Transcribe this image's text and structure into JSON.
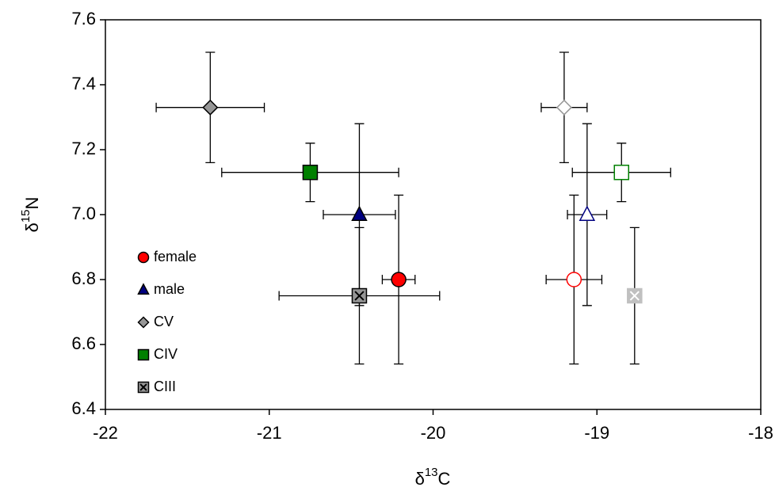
{
  "chart_data": {
    "type": "scatter",
    "xlabel": [
      "δ",
      "13",
      "C"
    ],
    "ylabel": [
      "δ",
      "15",
      "N"
    ],
    "xlim": [
      -22,
      -18
    ],
    "xticks": [
      -22,
      -21,
      -20,
      -19,
      -18
    ],
    "ylim": [
      6.4,
      7.6
    ],
    "yticks": [
      6.4,
      6.6,
      6.8,
      {
        "value": 7,
        "label": "7.0"
      },
      7.2,
      7.4,
      7.6
    ],
    "hollow": [
      false,
      true
    ],
    "series": [
      {
        "name": "female",
        "marker": "circle",
        "color": "#ff0000",
        "x": [
          -20.21,
          -19.14
        ],
        "y": [
          6.8,
          6.8
        ],
        "xerr": [
          0.1,
          0.17
        ],
        "yerr": [
          0.26,
          0.26
        ]
      },
      {
        "name": "male",
        "marker": "triangle",
        "color": "#000080",
        "x": [
          -20.45,
          -19.06
        ],
        "y": [
          7.0,
          7.0
        ],
        "xerr": [
          0.22,
          0.12
        ],
        "yerr": [
          0.28,
          0.28
        ]
      },
      {
        "name": "CV",
        "marker": "diamond",
        "color": "#969696",
        "x": [
          -21.36,
          -19.2
        ],
        "y": [
          7.33,
          7.33
        ],
        "xerr": [
          0.33,
          0.14
        ],
        "yerr": [
          0.17,
          0.17
        ]
      },
      {
        "name": "CIV",
        "marker": "square",
        "color": "#008000",
        "x": [
          -20.75,
          -18.85
        ],
        "y": [
          7.13,
          7.13
        ],
        "xerr": [
          0.54,
          0.3
        ],
        "yerr": [
          0.09,
          0.09
        ]
      },
      {
        "name": "CIII",
        "marker": "xsquare",
        "color": "#969696",
        "x": [
          -20.45,
          -18.77
        ],
        "y": [
          6.75,
          6.75
        ],
        "xerr": [
          0.49,
          0
        ],
        "yerr": [
          0.21,
          0.21
        ]
      }
    ]
  }
}
